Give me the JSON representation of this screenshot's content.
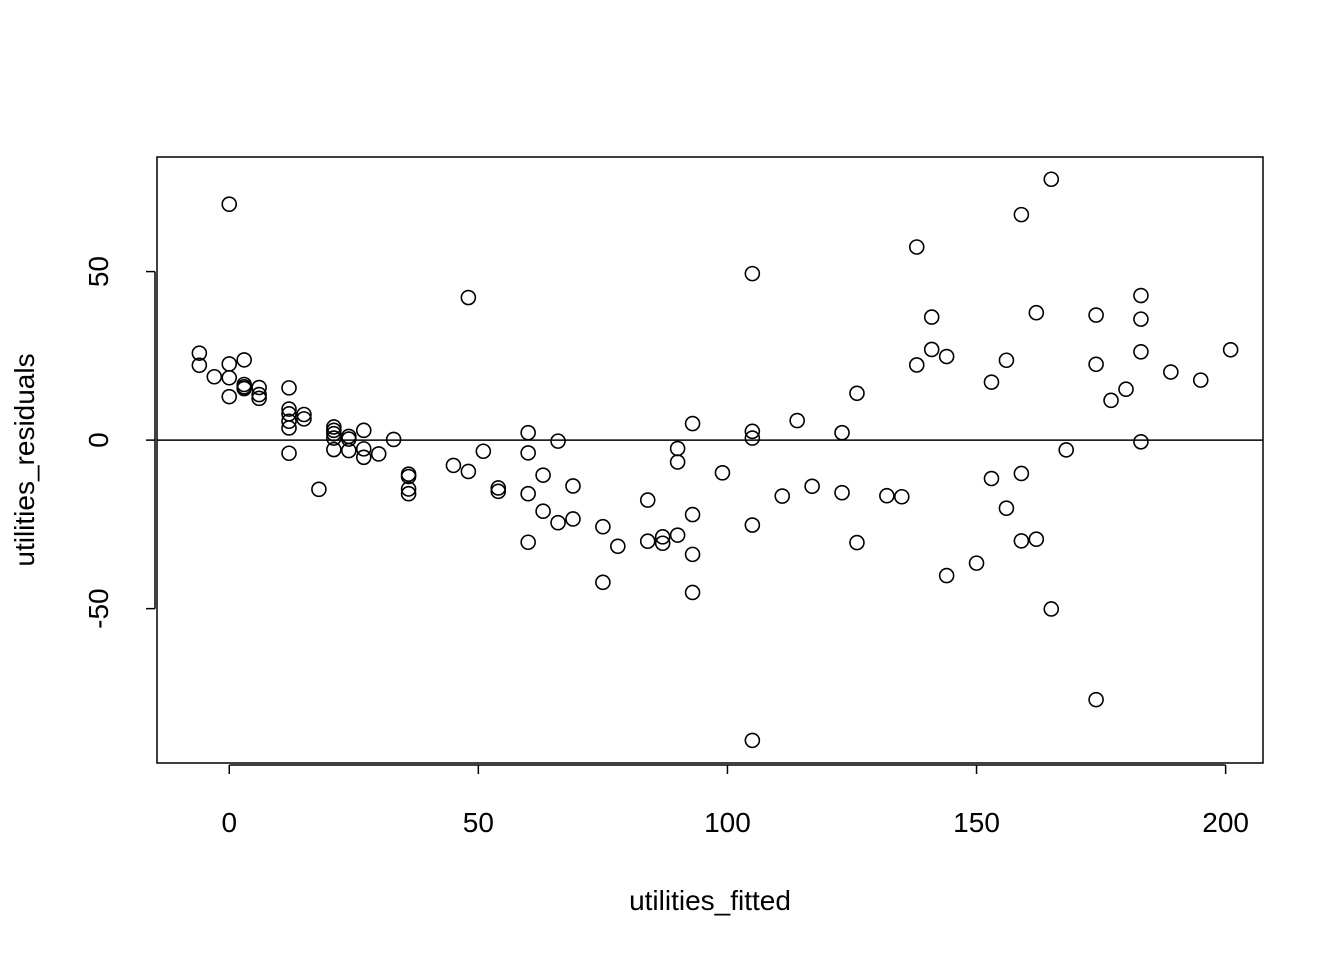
{
  "chart_data": {
    "type": "scatter",
    "title": "",
    "xlabel": "utilities_fitted",
    "ylabel": "utilities_residuals",
    "xlim": [
      -14.5,
      207.5
    ],
    "ylim": [
      -95.8,
      84
    ],
    "x_ticks": [
      0,
      50,
      100,
      150,
      200
    ],
    "x_tick_labels": [
      "0",
      "50",
      "100",
      "150",
      "200"
    ],
    "y_ticks": [
      -50,
      0,
      50
    ],
    "y_tick_labels": [
      "-50",
      "0",
      "50"
    ],
    "hline": 0,
    "grid": false,
    "point_color": "#000000",
    "points": [
      {
        "x": -6,
        "y": 25.8
      },
      {
        "x": -6,
        "y": 22.2
      },
      {
        "x": -3,
        "y": 18.8
      },
      {
        "x": 0,
        "y": 70
      },
      {
        "x": 0,
        "y": 22.6
      },
      {
        "x": 0,
        "y": 18.5
      },
      {
        "x": 0,
        "y": 12.9
      },
      {
        "x": 3,
        "y": 23.8
      },
      {
        "x": 3,
        "y": 16.5
      },
      {
        "x": 3,
        "y": 15.8
      },
      {
        "x": 3,
        "y": 15.3
      },
      {
        "x": 6,
        "y": 15.6
      },
      {
        "x": 6,
        "y": 13.5
      },
      {
        "x": 6,
        "y": 12.4
      },
      {
        "x": 12,
        "y": 15.5
      },
      {
        "x": 12,
        "y": 9.2
      },
      {
        "x": 12,
        "y": 7.8
      },
      {
        "x": 12,
        "y": 5.6
      },
      {
        "x": 12,
        "y": 3.6
      },
      {
        "x": 12,
        "y": -3.9
      },
      {
        "x": 15,
        "y": 7.6
      },
      {
        "x": 15,
        "y": 6.3
      },
      {
        "x": 18,
        "y": -14.6
      },
      {
        "x": 21,
        "y": 3.9
      },
      {
        "x": 21,
        "y": 2.9
      },
      {
        "x": 21,
        "y": 1.9
      },
      {
        "x": 21,
        "y": 0.6
      },
      {
        "x": 21,
        "y": -2.8
      },
      {
        "x": 24,
        "y": 1.1
      },
      {
        "x": 24,
        "y": 0.3
      },
      {
        "x": 24,
        "y": -3.1
      },
      {
        "x": 27,
        "y": 2.9
      },
      {
        "x": 27,
        "y": -2.6
      },
      {
        "x": 27,
        "y": -5.1
      },
      {
        "x": 30,
        "y": -4.1
      },
      {
        "x": 33,
        "y": 0.2
      },
      {
        "x": 36,
        "y": -10.1
      },
      {
        "x": 36,
        "y": -10.8
      },
      {
        "x": 36,
        "y": -14.5
      },
      {
        "x": 36,
        "y": -15.9
      },
      {
        "x": 45,
        "y": -7.5
      },
      {
        "x": 48,
        "y": 42.3
      },
      {
        "x": 48,
        "y": -9.3
      },
      {
        "x": 51,
        "y": -3.3
      },
      {
        "x": 54,
        "y": -14.2
      },
      {
        "x": 54,
        "y": -15.2
      },
      {
        "x": 60,
        "y": 2.2
      },
      {
        "x": 60,
        "y": -3.8
      },
      {
        "x": 60,
        "y": -15.9
      },
      {
        "x": 60,
        "y": -30.3
      },
      {
        "x": 63,
        "y": -10.4
      },
      {
        "x": 63,
        "y": -21.1
      },
      {
        "x": 66,
        "y": -0.3
      },
      {
        "x": 66,
        "y": -24.5
      },
      {
        "x": 69,
        "y": -13.6
      },
      {
        "x": 69,
        "y": -23.4
      },
      {
        "x": 75,
        "y": -25.7
      },
      {
        "x": 75,
        "y": -42.2
      },
      {
        "x": 78,
        "y": -31.5
      },
      {
        "x": 84,
        "y": -17.8
      },
      {
        "x": 84,
        "y": -30
      },
      {
        "x": 87,
        "y": -28.7
      },
      {
        "x": 87,
        "y": -30.6
      },
      {
        "x": 90,
        "y": -2.5
      },
      {
        "x": 90,
        "y": -6.5
      },
      {
        "x": 90,
        "y": -28.2
      },
      {
        "x": 93,
        "y": 4.9
      },
      {
        "x": 93,
        "y": -22.1
      },
      {
        "x": 93,
        "y": -33.9
      },
      {
        "x": 93,
        "y": -45.2
      },
      {
        "x": 99,
        "y": -9.7
      },
      {
        "x": 105,
        "y": 49.4
      },
      {
        "x": 105,
        "y": 2.6
      },
      {
        "x": 105,
        "y": 0.6
      },
      {
        "x": 105,
        "y": -25.2
      },
      {
        "x": 105,
        "y": -89.1
      },
      {
        "x": 111,
        "y": -16.6
      },
      {
        "x": 114,
        "y": 5.8
      },
      {
        "x": 117,
        "y": -13.7
      },
      {
        "x": 123,
        "y": 2.2
      },
      {
        "x": 123,
        "y": -15.6
      },
      {
        "x": 126,
        "y": 13.9
      },
      {
        "x": 126,
        "y": -30.4
      },
      {
        "x": 132,
        "y": -16.5
      },
      {
        "x": 135,
        "y": -16.8
      },
      {
        "x": 138,
        "y": 57.3
      },
      {
        "x": 138,
        "y": 22.3
      },
      {
        "x": 141,
        "y": 36.5
      },
      {
        "x": 141,
        "y": 26.9
      },
      {
        "x": 144,
        "y": 24.8
      },
      {
        "x": 144,
        "y": -40.2
      },
      {
        "x": 150,
        "y": -36.5
      },
      {
        "x": 153,
        "y": 17.2
      },
      {
        "x": 153,
        "y": -11.4
      },
      {
        "x": 156,
        "y": 23.7
      },
      {
        "x": 156,
        "y": -20.2
      },
      {
        "x": 159,
        "y": 66.9
      },
      {
        "x": 159,
        "y": -9.9
      },
      {
        "x": 159,
        "y": -29.9
      },
      {
        "x": 162,
        "y": 37.8
      },
      {
        "x": 162,
        "y": -29.4
      },
      {
        "x": 165,
        "y": 77.4
      },
      {
        "x": 165,
        "y": -50.1
      },
      {
        "x": 168,
        "y": -2.9
      },
      {
        "x": 174,
        "y": 37.1
      },
      {
        "x": 174,
        "y": 22.5
      },
      {
        "x": 174,
        "y": -77
      },
      {
        "x": 177,
        "y": 11.8
      },
      {
        "x": 180,
        "y": 15.1
      },
      {
        "x": 183,
        "y": 42.9
      },
      {
        "x": 183,
        "y": 35.9
      },
      {
        "x": 183,
        "y": 26.2
      },
      {
        "x": 183,
        "y": -0.5
      },
      {
        "x": 189,
        "y": 20.2
      },
      {
        "x": 195,
        "y": 17.8
      },
      {
        "x": 201,
        "y": 26.8
      }
    ]
  }
}
